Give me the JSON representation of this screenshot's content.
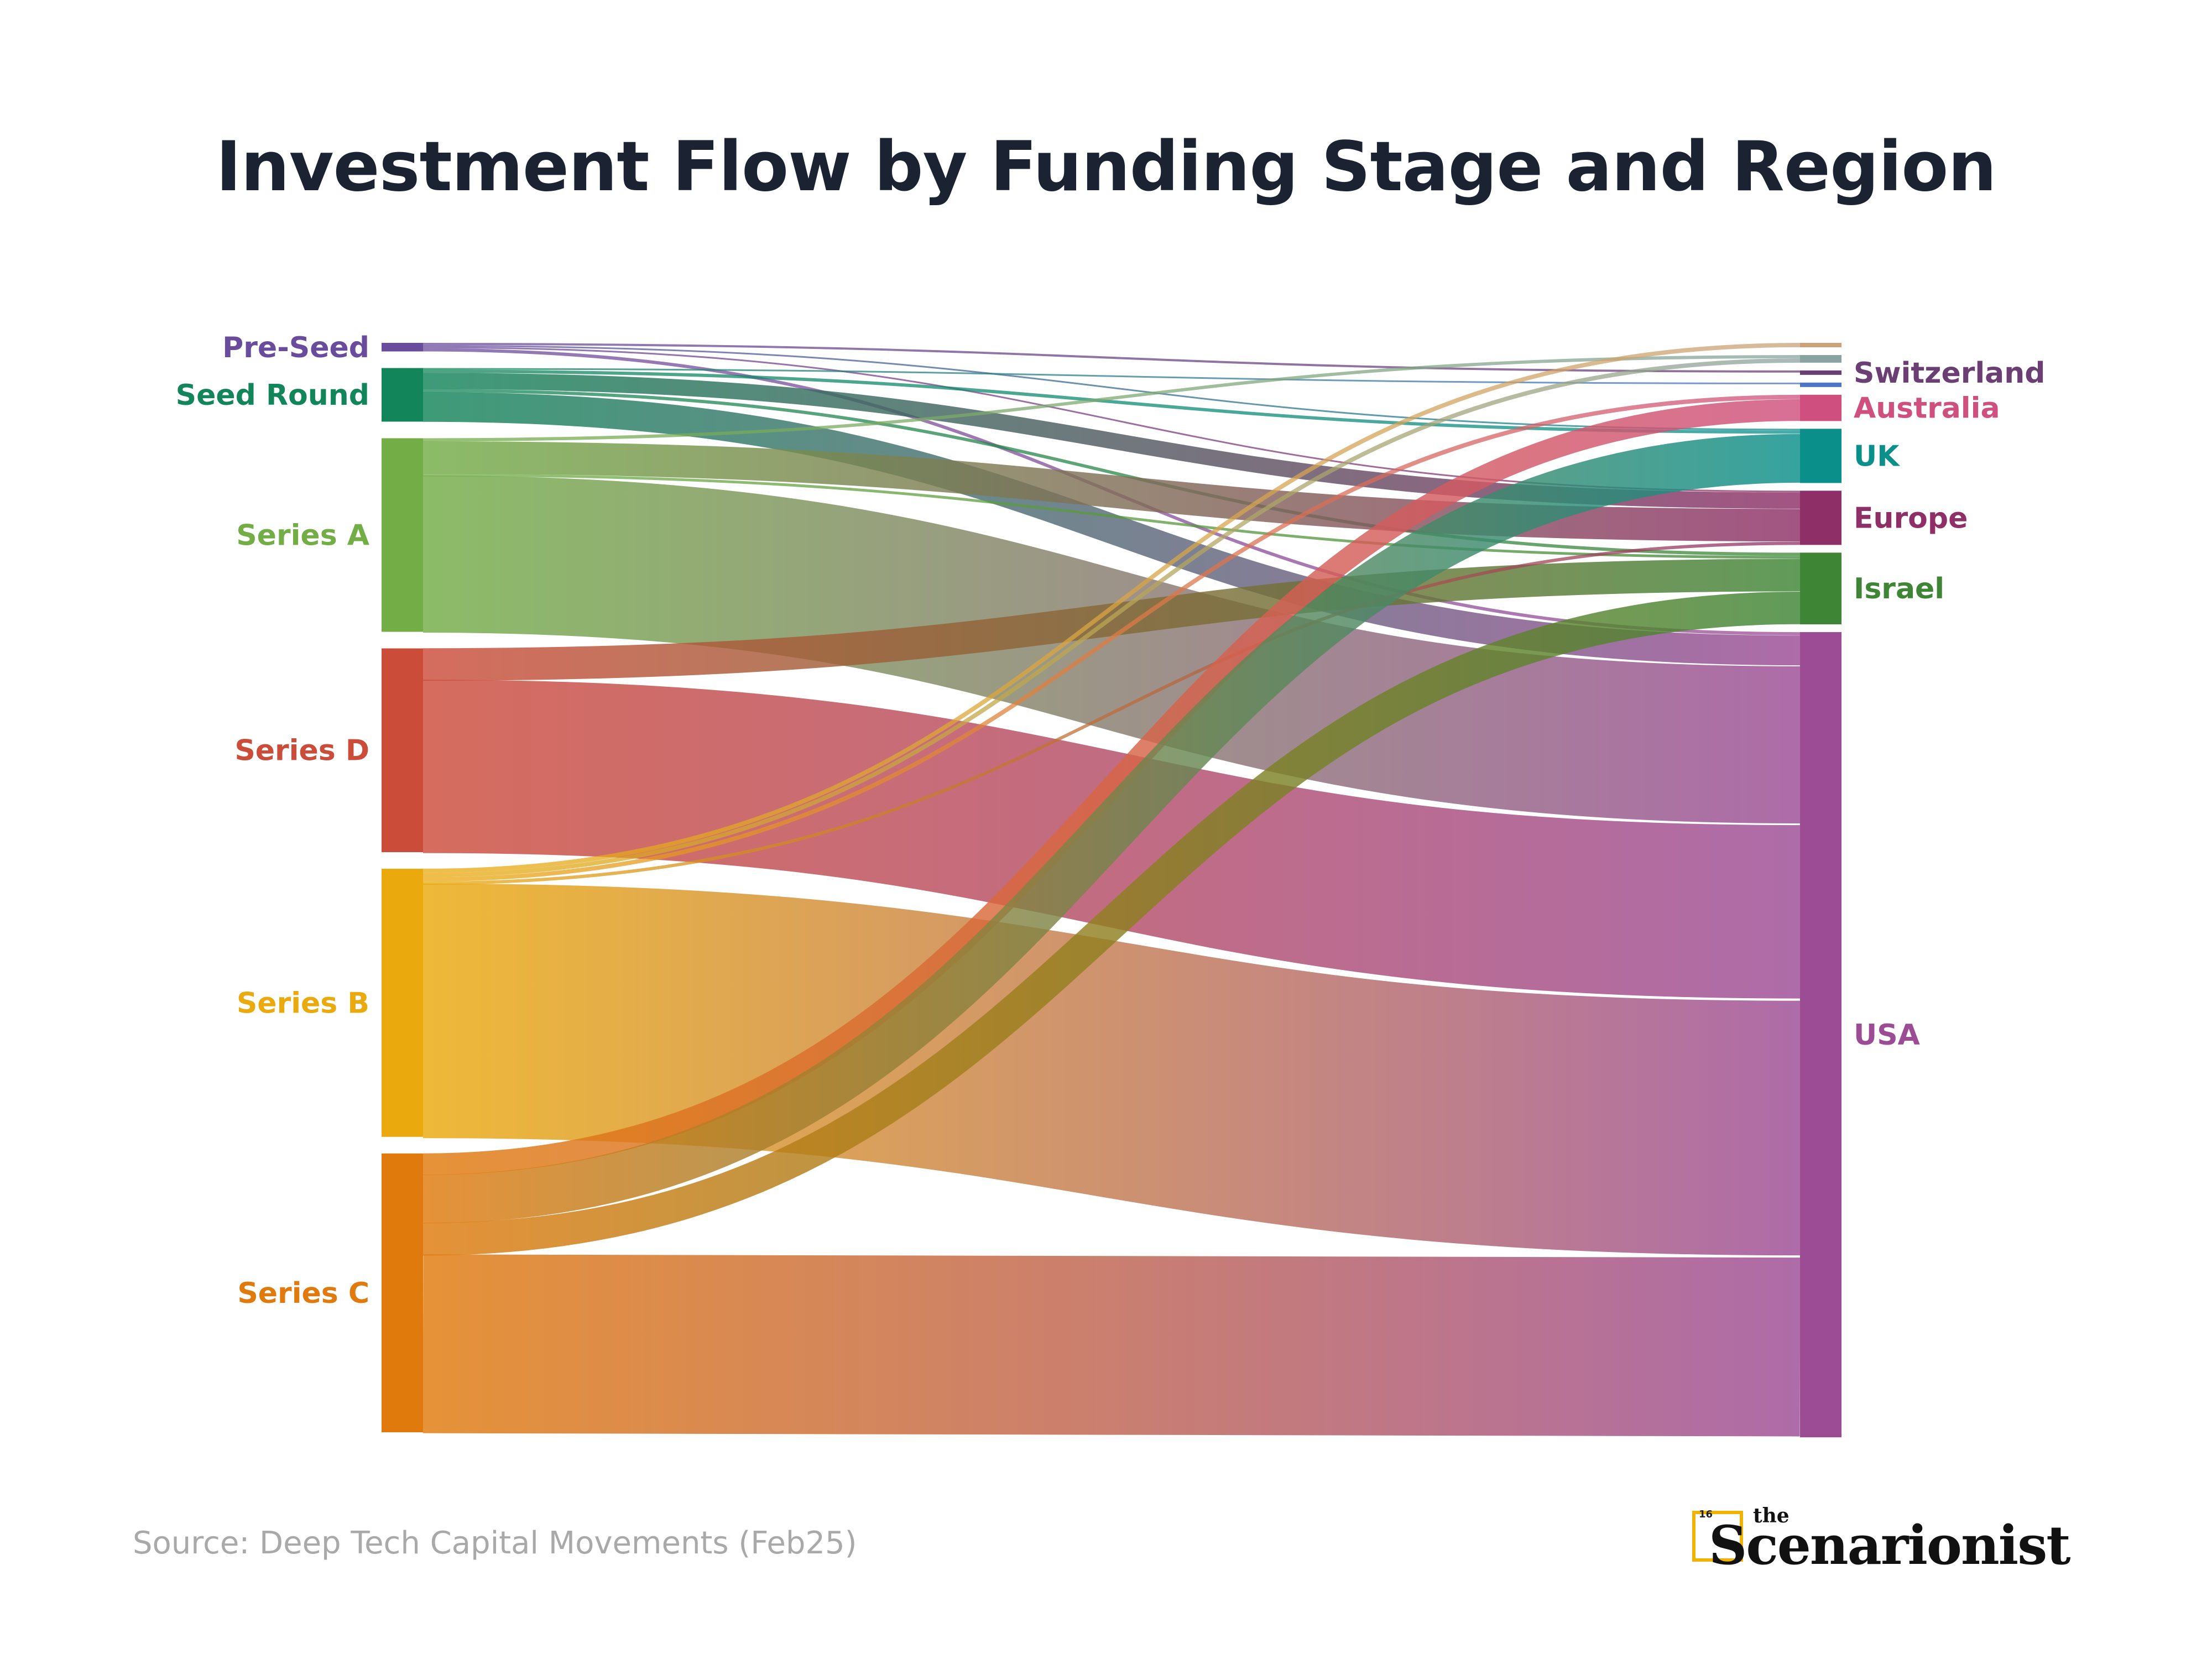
{
  "chart_data": {
    "type": "sankey",
    "title": "Investment Flow by Funding Stage and Region",
    "source_nodes": [
      {
        "name": "Pre-Seed",
        "color": "#6a4c9c"
      },
      {
        "name": "Seed Round",
        "color": "#13855a"
      },
      {
        "name": "Series A",
        "color": "#72ad46"
      },
      {
        "name": "Series D",
        "color": "#cc4c3a"
      },
      {
        "name": "Series B",
        "color": "#eaa90c"
      },
      {
        "name": "Series C",
        "color": "#e07a0c"
      }
    ],
    "target_nodes": [
      {
        "name": "",
        "color": "#c9a27b"
      },
      {
        "name": "",
        "color": "#8aa3a0"
      },
      {
        "name": "Switzerland",
        "color": "#6b3f73"
      },
      {
        "name": "",
        "color": "#4f76c4"
      },
      {
        "name": "Australia",
        "color": "#cf4f7e"
      },
      {
        "name": "UK",
        "color": "#0a8f8a"
      },
      {
        "name": "Europe",
        "color": "#8e2f67"
      },
      {
        "name": "Israel",
        "color": "#3e8535"
      },
      {
        "name": "USA",
        "color": "#9c4b95"
      }
    ],
    "links": [
      {
        "source": "Pre-Seed",
        "target": "Switzerland",
        "value": 0.4
      },
      {
        "source": "Pre-Seed",
        "target": "UK",
        "value": 0.3
      },
      {
        "source": "Pre-Seed",
        "target": "Europe",
        "value": 0.3
      },
      {
        "source": "Pre-Seed",
        "target": "USA",
        "value": 0.6
      },
      {
        "source": "Seed Round",
        "target": "",
        "value": 0.3
      },
      {
        "source": "Seed Round",
        "target": "UK",
        "value": 0.6
      },
      {
        "source": "Seed Round",
        "target": "Europe",
        "value": 3.0
      },
      {
        "source": "Seed Round",
        "target": "Israel",
        "value": 0.6
      },
      {
        "source": "Seed Round",
        "target": "USA",
        "value": 5.5
      },
      {
        "source": "Series A",
        "target": "",
        "value": 0.6
      },
      {
        "source": "Series A",
        "target": "Europe",
        "value": 6.0
      },
      {
        "source": "Series A",
        "target": "Israel",
        "value": 0.5
      },
      {
        "source": "Series A",
        "target": "USA",
        "value": 29.0
      },
      {
        "source": "Series D",
        "target": "Israel",
        "value": 6.0
      },
      {
        "source": "Series D",
        "target": "USA",
        "value": 32.0
      },
      {
        "source": "Series B",
        "target": "",
        "value": 0.8
      },
      {
        "source": "Series B",
        "target": "",
        "value": 0.8
      },
      {
        "source": "Series B",
        "target": "Australia",
        "value": 0.8
      },
      {
        "source": "Series B",
        "target": "Europe",
        "value": 0.6
      },
      {
        "source": "Series B",
        "target": "USA",
        "value": 47.0
      },
      {
        "source": "Series C",
        "target": "Australia",
        "value": 4.0
      },
      {
        "source": "Series C",
        "target": "UK",
        "value": 9.0
      },
      {
        "source": "Series C",
        "target": "Israel",
        "value": 6.0
      },
      {
        "source": "Series C",
        "target": "USA",
        "value": 33.0
      }
    ]
  },
  "source_note": "Source: Deep Tech Capital Movements (Feb25)",
  "brand": {
    "small": "the",
    "name": "Scenarionist",
    "badge": "16"
  }
}
